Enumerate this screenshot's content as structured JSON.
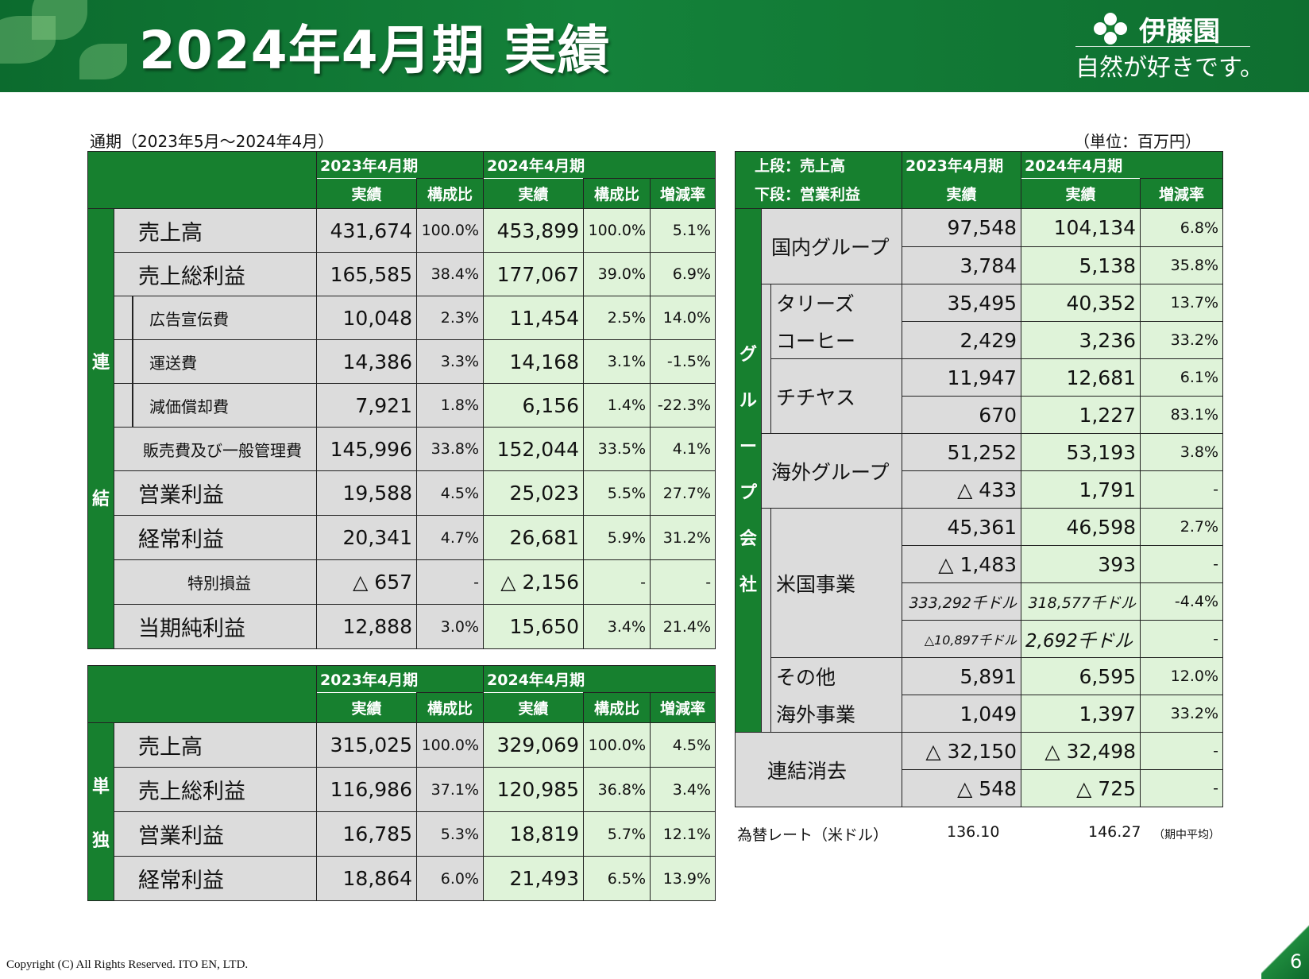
{
  "header": {
    "title": "2024年4月期 実績",
    "logo_name": "伊藤園",
    "logo_tagline": "自然が好きです。"
  },
  "period_caption": "通期（2023年5月～2024年4月）",
  "unit_caption": "（単位：百万円）",
  "consolidated": {
    "side_label": [
      "連",
      "結"
    ],
    "year_prev": "2023年4月期",
    "year_curr": "2024年4月期",
    "col_actual": "実績",
    "col_ratio": "構成比",
    "col_change": "増減率",
    "rows": [
      {
        "label": "売上高",
        "prev": "431,674",
        "prev_ratio": "100.0%",
        "curr": "453,899",
        "curr_ratio": "100.0%",
        "change": "5.1%"
      },
      {
        "label": "売上総利益",
        "prev": "165,585",
        "prev_ratio": "38.4%",
        "curr": "177,067",
        "curr_ratio": "39.0%",
        "change": "6.9%"
      },
      {
        "label": "広告宣伝費",
        "prev": "10,048",
        "prev_ratio": "2.3%",
        "curr": "11,454",
        "curr_ratio": "2.5%",
        "change": "14.0%"
      },
      {
        "label": "運送費",
        "prev": "14,386",
        "prev_ratio": "3.3%",
        "curr": "14,168",
        "curr_ratio": "3.1%",
        "change": "-1.5%"
      },
      {
        "label": "減価償却費",
        "prev": "7,921",
        "prev_ratio": "1.8%",
        "curr": "6,156",
        "curr_ratio": "1.4%",
        "change": "-22.3%"
      },
      {
        "label": "販売費及び一般管理費",
        "prev": "145,996",
        "prev_ratio": "33.8%",
        "curr": "152,044",
        "curr_ratio": "33.5%",
        "change": "4.1%"
      },
      {
        "label": "営業利益",
        "prev": "19,588",
        "prev_ratio": "4.5%",
        "curr": "25,023",
        "curr_ratio": "5.5%",
        "change": "27.7%"
      },
      {
        "label": "経常利益",
        "prev": "20,341",
        "prev_ratio": "4.7%",
        "curr": "26,681",
        "curr_ratio": "5.9%",
        "change": "31.2%"
      },
      {
        "label": "特別損益",
        "prev": "△ 657",
        "prev_ratio": "-",
        "curr": "△ 2,156",
        "curr_ratio": "-",
        "change": "-"
      },
      {
        "label": "当期純利益",
        "prev": "12,888",
        "prev_ratio": "3.0%",
        "curr": "15,650",
        "curr_ratio": "3.4%",
        "change": "21.4%"
      }
    ]
  },
  "standalone": {
    "side_label": [
      "単",
      "独"
    ],
    "year_prev": "2023年4月期",
    "year_curr": "2024年4月期",
    "col_actual": "実績",
    "col_ratio": "構成比",
    "col_change": "増減率",
    "rows": [
      {
        "label": "売上高",
        "prev": "315,025",
        "prev_ratio": "100.0%",
        "curr": "329,069",
        "curr_ratio": "100.0%",
        "change": "4.5%"
      },
      {
        "label": "売上総利益",
        "prev": "116,986",
        "prev_ratio": "37.1%",
        "curr": "120,985",
        "curr_ratio": "36.8%",
        "change": "3.4%"
      },
      {
        "label": "営業利益",
        "prev": "16,785",
        "prev_ratio": "5.3%",
        "curr": "18,819",
        "curr_ratio": "5.7%",
        "change": "12.1%"
      },
      {
        "label": "経常利益",
        "prev": "18,864",
        "prev_ratio": "6.0%",
        "curr": "21,493",
        "curr_ratio": "6.5%",
        "change": "13.9%"
      }
    ]
  },
  "group": {
    "header_top": "上段：売上高",
    "header_bottom": "下段：営業利益",
    "year_prev": "2023年4月期",
    "year_curr": "2024年4月期",
    "col_actual": "実績",
    "col_change": "増減率",
    "side_label": [
      "グ",
      "ル",
      "ー",
      "プ",
      "会",
      "社"
    ],
    "domestic": {
      "label": "国内グループ",
      "sales_prev": "97,548",
      "sales_curr": "104,134",
      "sales_change": "6.8%",
      "op_prev": "3,784",
      "op_curr": "5,138",
      "op_change": "35.8%"
    },
    "tullys": {
      "label_1": "タリーズ",
      "label_2": "コーヒー",
      "sales_prev": "35,495",
      "sales_curr": "40,352",
      "sales_change": "13.7%",
      "op_prev": "2,429",
      "op_curr": "3,236",
      "op_change": "33.2%"
    },
    "chichiyasu": {
      "label": "チチヤス",
      "sales_prev": "11,947",
      "sales_curr": "12,681",
      "sales_change": "6.1%",
      "op_prev": "670",
      "op_curr": "1,227",
      "op_change": "83.1%"
    },
    "overseas": {
      "label": "海外グループ",
      "sales_prev": "51,252",
      "sales_curr": "53,193",
      "sales_change": "3.8%",
      "op_prev": "△ 433",
      "op_curr": "1,791",
      "op_change": "-"
    },
    "us": {
      "label": "米国事業",
      "sales_prev": "45,361",
      "sales_curr": "46,598",
      "sales_change": "2.7%",
      "op_prev": "△ 1,483",
      "op_curr": "393",
      "op_change": "-",
      "sales_usd_prev": "333,292千ドル",
      "sales_usd_curr": "318,577千ドル",
      "sales_usd_change": "-4.4%",
      "op_usd_prev": "△10,897千ドル",
      "op_usd_curr": "2,692千ドル",
      "op_usd_change": "-"
    },
    "other_overseas": {
      "label_1": "その他",
      "label_2": "海外事業",
      "sales_prev": "5,891",
      "sales_curr": "6,595",
      "sales_change": "12.0%",
      "op_prev": "1,049",
      "op_curr": "1,397",
      "op_change": "33.2%"
    },
    "elimination": {
      "label": "連結消去",
      "sales_prev": "△ 32,150",
      "sales_curr": "△ 32,498",
      "sales_change": "-",
      "op_prev": "△ 548",
      "op_curr": "△ 725",
      "op_change": "-"
    }
  },
  "fx": {
    "label": "為替レート（米ドル）",
    "prev": "136.10",
    "curr": "146.27",
    "note": "（期中平均）"
  },
  "footer": {
    "copyright": "Copyright (C) All Rights Reserved. ITO EN, LTD.",
    "page": "6"
  },
  "colors": {
    "brand_green": "#17802f",
    "light_green": "#dff3d9",
    "gray": "#dcdcdc"
  }
}
